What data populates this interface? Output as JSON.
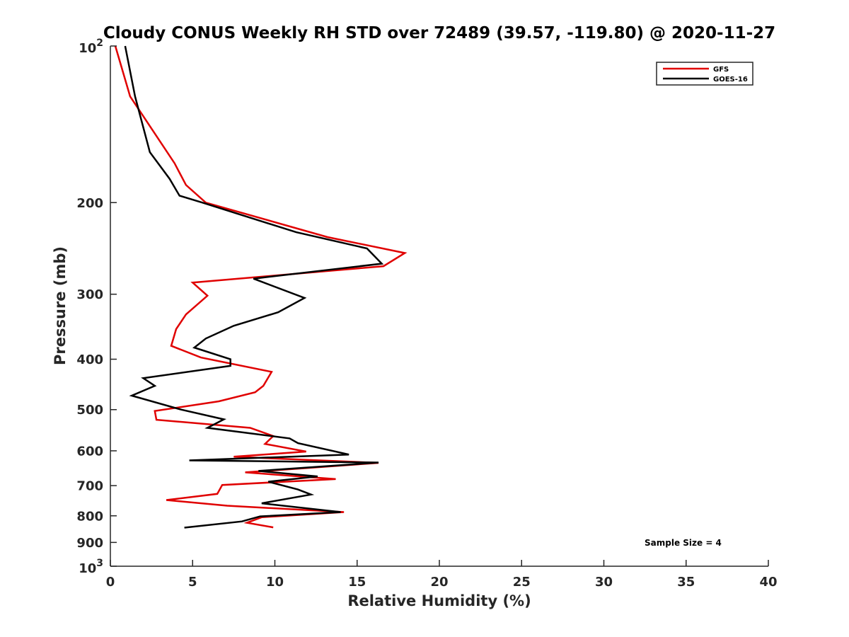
{
  "chart_data": {
    "type": "line",
    "title": "Cloudy CONUS Weekly RH STD over 72489 (39.57, -119.80) @ 2020-11-27",
    "xlabel": "Relative Humidity (%)",
    "ylabel": "Pressure (mb)",
    "xlim": [
      0,
      40
    ],
    "ylim": [
      100,
      1000
    ],
    "y_scale": "log",
    "y_reversed": true,
    "x_ticks": [
      0,
      5,
      10,
      15,
      20,
      25,
      30,
      35,
      40
    ],
    "x_tick_labels": [
      "0",
      "5",
      "10",
      "15",
      "20",
      "25",
      "30",
      "35",
      "40"
    ],
    "y_ticks": [
      200,
      300,
      400,
      500,
      600,
      700,
      800,
      900
    ],
    "y_tick_labels": [
      "200",
      "300",
      "400",
      "500",
      "600",
      "700",
      "800",
      "900"
    ],
    "y_decade_ticks": [
      {
        "value": 100,
        "base": "10",
        "exp": "2"
      },
      {
        "value": 1000,
        "base": "10",
        "exp": "3"
      }
    ],
    "grid": false,
    "legend_position": "top-right",
    "annotation": "Sample Size = 4",
    "series": [
      {
        "name": "GFS",
        "color": "#e00000",
        "points": [
          [
            0.3,
            100
          ],
          [
            1.2,
            125
          ],
          [
            3.9,
            168
          ],
          [
            4.6,
            185
          ],
          [
            5.8,
            200
          ],
          [
            13.2,
            233
          ],
          [
            17.9,
            250
          ],
          [
            16.6,
            265
          ],
          [
            5.0,
            285
          ],
          [
            5.9,
            302
          ],
          [
            4.6,
            328
          ],
          [
            4.0,
            350
          ],
          [
            3.7,
            377
          ],
          [
            5.5,
            397
          ],
          [
            9.8,
            423
          ],
          [
            9.3,
            450
          ],
          [
            8.8,
            463
          ],
          [
            6.6,
            482
          ],
          [
            2.7,
            503
          ],
          [
            2.8,
            523
          ],
          [
            8.5,
            542
          ],
          [
            9.9,
            562
          ],
          [
            9.4,
            582
          ],
          [
            11.9,
            602
          ],
          [
            7.5,
            616
          ],
          [
            16.3,
            633
          ],
          [
            8.2,
            660
          ],
          [
            13.7,
            680
          ],
          [
            6.8,
            698
          ],
          [
            6.5,
            726
          ],
          [
            3.4,
            746
          ],
          [
            7.1,
            765
          ],
          [
            14.2,
            787
          ],
          [
            9.2,
            805
          ],
          [
            8.3,
            825
          ],
          [
            9.9,
            842
          ]
        ]
      },
      {
        "name": "GOES-16",
        "color": "#000000",
        "points": [
          [
            0.9,
            100
          ],
          [
            1.5,
            125
          ],
          [
            2.4,
            160
          ],
          [
            3.6,
            180
          ],
          [
            4.2,
            194
          ],
          [
            5.6,
            200
          ],
          [
            11.3,
            228
          ],
          [
            15.6,
            245
          ],
          [
            16.5,
            262
          ],
          [
            8.7,
            280
          ],
          [
            11.8,
            305
          ],
          [
            10.2,
            325
          ],
          [
            7.5,
            345
          ],
          [
            5.8,
            365
          ],
          [
            5.1,
            380
          ],
          [
            7.3,
            400
          ],
          [
            7.3,
            412
          ],
          [
            2.0,
            435
          ],
          [
            2.7,
            450
          ],
          [
            1.3,
            470
          ],
          [
            4.3,
            500
          ],
          [
            6.9,
            522
          ],
          [
            5.9,
            542
          ],
          [
            10.9,
            568
          ],
          [
            11.4,
            580
          ],
          [
            14.5,
            610
          ],
          [
            4.8,
            626
          ],
          [
            16.3,
            632
          ],
          [
            9.0,
            656
          ],
          [
            12.6,
            672
          ],
          [
            9.6,
            688
          ],
          [
            11.4,
            712
          ],
          [
            12.2,
            728
          ],
          [
            9.2,
            757
          ],
          [
            14.0,
            787
          ],
          [
            9.1,
            802
          ],
          [
            8.0,
            820
          ],
          [
            4.5,
            843
          ]
        ]
      }
    ]
  }
}
